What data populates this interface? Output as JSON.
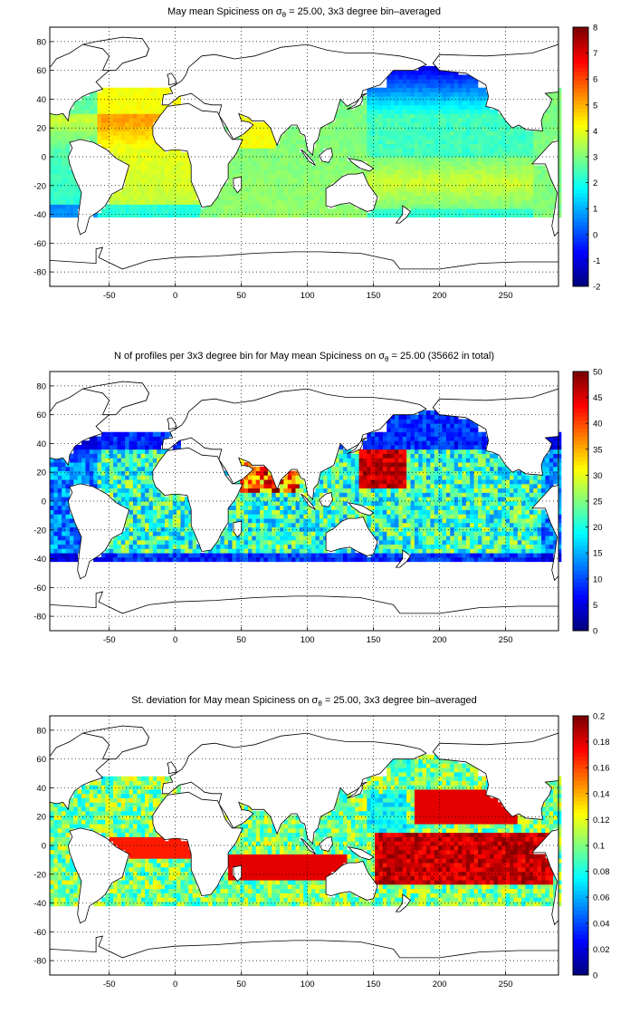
{
  "panels": [
    {
      "title_prefix": "May mean Spiciness on σ",
      "title_sub": "θ",
      "title_suffix": " = 25.00, 3x3 degree bin–averaged",
      "colorbar": {
        "min": -2,
        "max": 8,
        "ticks": [
          "-2",
          "-1",
          "0",
          "1",
          "2",
          "3",
          "4",
          "5",
          "6",
          "7",
          "8"
        ]
      },
      "field": "spice"
    },
    {
      "title_prefix": "N of profiles per 3x3 degree bin for May mean Spiciness on σ",
      "title_sub": "θ",
      "title_suffix": " = 25.00 (35662 in total)",
      "colorbar": {
        "min": 0,
        "max": 50,
        "ticks": [
          "0",
          "5",
          "10",
          "15",
          "20",
          "25",
          "30",
          "35",
          "40",
          "45",
          "50"
        ]
      },
      "field": "count"
    },
    {
      "title_prefix": "St. deviation for May mean Spiciness on σ",
      "title_sub": "θ",
      "title_suffix": " = 25.00, 3x3 degree bin–averaged",
      "colorbar": {
        "min": 0,
        "max": 0.2,
        "ticks": [
          "0",
          "0.02",
          "0.04",
          "0.06",
          "0.08",
          "0.1",
          "0.12",
          "0.14",
          "0.16",
          "0.18",
          "0.2"
        ]
      },
      "field": "std"
    }
  ],
  "chart_data": {
    "type": "heatmap",
    "x_range": [
      -95,
      290
    ],
    "y_range": [
      -90,
      90
    ],
    "x_ticks": [
      "-50",
      "0",
      "50",
      "100",
      "150",
      "200",
      "250"
    ],
    "y_ticks": [
      "80",
      "60",
      "40",
      "20",
      "0",
      "-20",
      "-40",
      "-60",
      "-80"
    ],
    "grid": true,
    "colormap": "jet",
    "bin_size_deg": 3
  }
}
